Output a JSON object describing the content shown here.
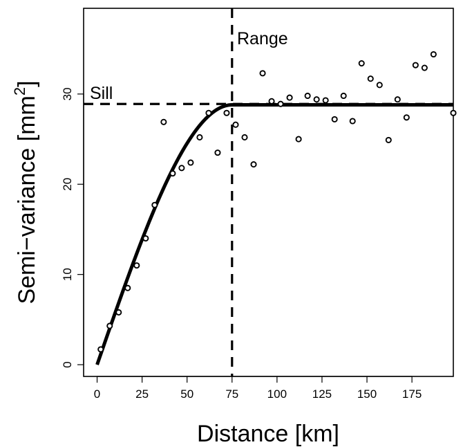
{
  "chart_data": {
    "type": "scatter",
    "title": "",
    "xlabel": "Distance [km]",
    "ylabel_main": "Semi−variance [mm",
    "ylabel_sup": "2",
    "ylabel_close": "]",
    "xlim": [
      -7.5,
      198
    ],
    "ylim": [
      -1.3,
      39.5
    ],
    "xticks": [
      0,
      25,
      50,
      75,
      100,
      125,
      150,
      175
    ],
    "yticks": [
      0,
      10,
      20,
      30
    ],
    "grid": false,
    "model": {
      "type": "spherical",
      "nugget": 0,
      "sill": 28.8,
      "range": 75
    },
    "annotations": {
      "sill_label": "Sill",
      "range_label": "Range",
      "sill_line_y": 28.9,
      "range_line_x": 75
    },
    "points": [
      [
        2,
        1.7
      ],
      [
        7,
        4.3
      ],
      [
        12,
        5.8
      ],
      [
        17,
        8.5
      ],
      [
        22,
        11.0
      ],
      [
        27,
        14.0
      ],
      [
        32,
        17.7
      ],
      [
        37,
        26.9
      ],
      [
        42,
        21.2
      ],
      [
        47,
        21.8
      ],
      [
        52,
        22.4
      ],
      [
        57,
        25.2
      ],
      [
        62,
        27.9
      ],
      [
        67,
        23.5
      ],
      [
        72,
        27.9
      ],
      [
        77,
        26.6
      ],
      [
        82,
        25.2
      ],
      [
        87,
        22.2
      ],
      [
        92,
        32.3
      ],
      [
        97,
        29.2
      ],
      [
        102,
        28.9
      ],
      [
        107,
        29.6
      ],
      [
        112,
        25.0
      ],
      [
        117,
        29.8
      ],
      [
        122,
        29.4
      ],
      [
        127,
        29.3
      ],
      [
        132,
        27.2
      ],
      [
        137,
        29.8
      ],
      [
        142,
        27.0
      ],
      [
        147,
        33.4
      ],
      [
        152,
        31.7
      ],
      [
        157,
        31.0
      ],
      [
        162,
        24.9
      ],
      [
        167,
        29.4
      ],
      [
        172,
        27.4
      ],
      [
        177,
        33.2
      ],
      [
        182,
        32.9
      ],
      [
        187,
        34.4
      ],
      [
        198,
        27.9
      ]
    ]
  }
}
